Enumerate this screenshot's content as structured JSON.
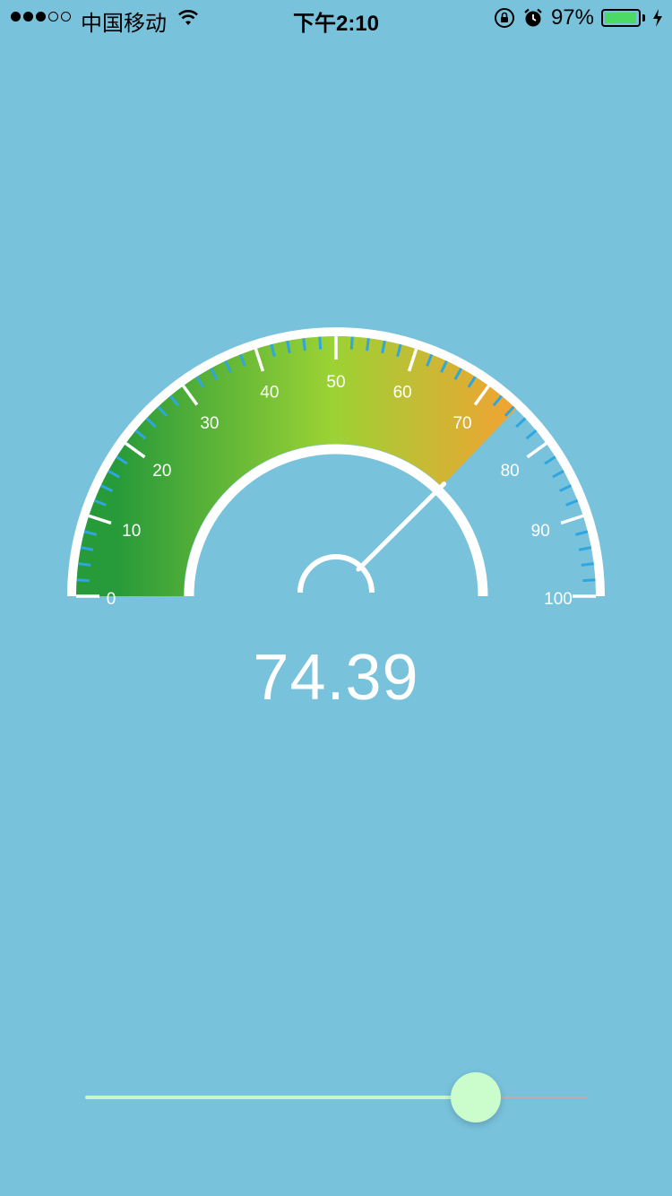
{
  "status_bar": {
    "carrier": "中国移动",
    "time": "下午2:10",
    "battery_percent": "97%",
    "battery_level": 0.97,
    "icons": [
      "signal-icon",
      "wifi-icon",
      "rotation-lock-icon",
      "alarm-icon",
      "battery-icon",
      "charging-icon"
    ]
  },
  "gauge": {
    "min": 0,
    "max": 100,
    "value": 74.39,
    "tick_labels": [
      "0",
      "10",
      "20",
      "30",
      "40",
      "50",
      "60",
      "70",
      "80",
      "90",
      "100"
    ],
    "gradient_colors": [
      "#279a3a",
      "#9bd234",
      "#f4a233"
    ],
    "minor_tick_color": "#2ea6df",
    "major_tick_color": "#ffffff"
  },
  "readout": {
    "value_text": "74.39"
  },
  "slider": {
    "value": 0.7439,
    "min_track_color": "#c9f6cc",
    "max_track_color": "#c7a8ad",
    "thumb_color": "#cbfccc"
  }
}
